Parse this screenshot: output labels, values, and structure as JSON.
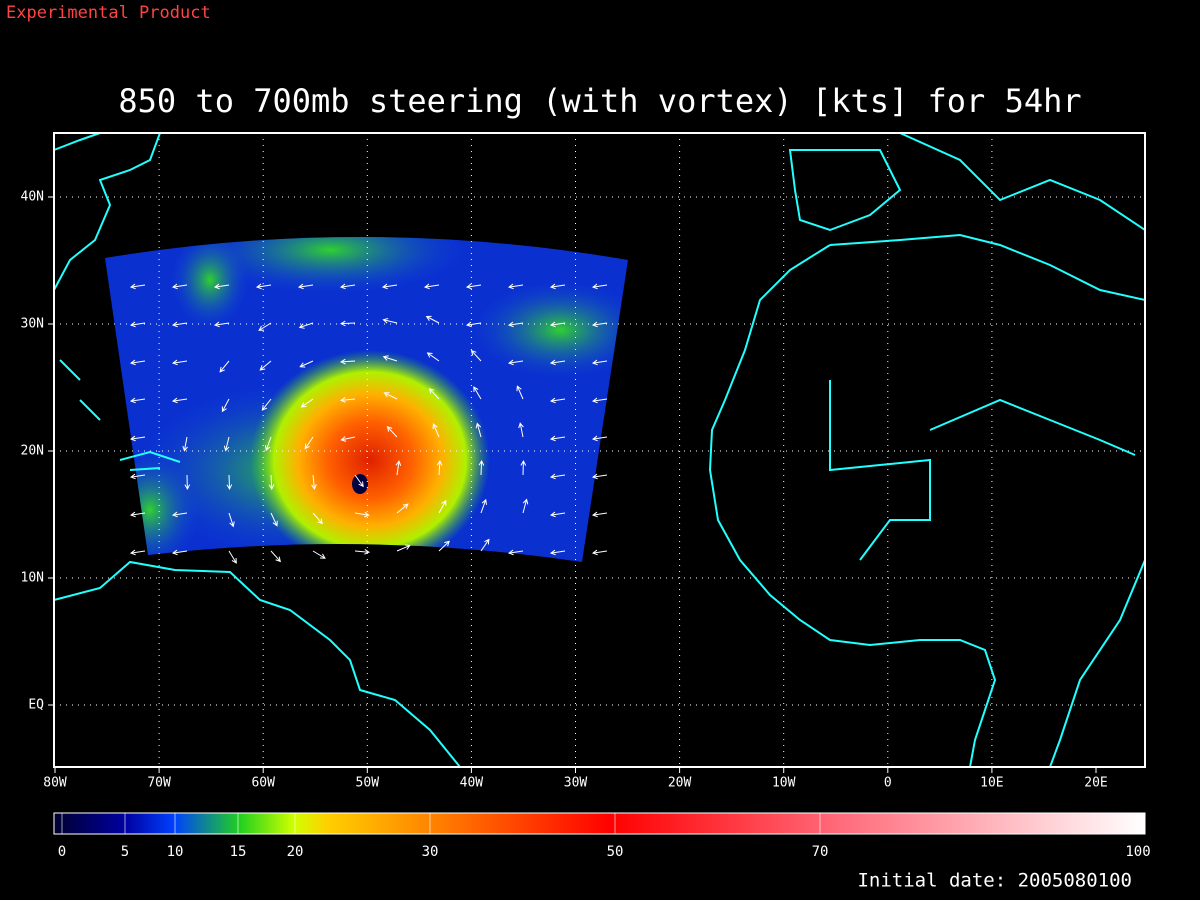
{
  "header": {
    "product_note": "Experimental Product",
    "title": "850 to 700mb steering (with vortex) [kts] for 54hr"
  },
  "map": {
    "lon_labels": [
      "80W",
      "70W",
      "60W",
      "50W",
      "40W",
      "30W",
      "20W",
      "10W",
      "0",
      "10E",
      "20E"
    ],
    "lat_labels": [
      "40N",
      "30N",
      "20N",
      "10N",
      "EQ"
    ]
  },
  "colorbar": {
    "labels": [
      "0",
      "5",
      "10",
      "15",
      "20",
      "30",
      "50",
      "70",
      "100"
    ]
  },
  "footer": {
    "initial_date": "Initial date: 2005080100"
  }
}
